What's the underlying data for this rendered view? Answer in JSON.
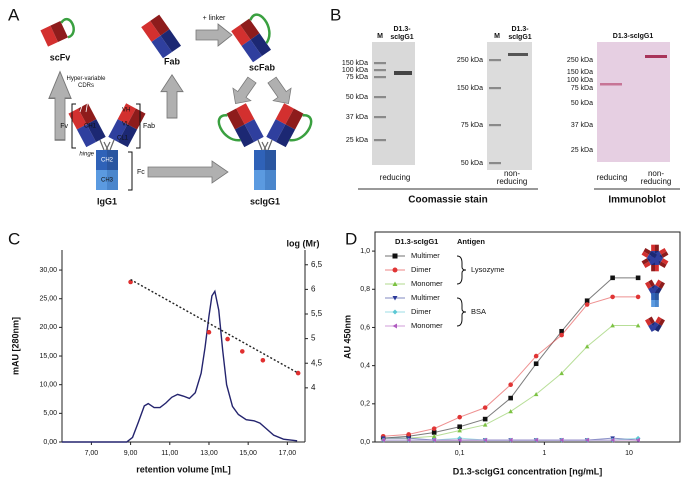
{
  "panel_labels": [
    "A",
    "B",
    "C",
    "D"
  ],
  "panel_a": {
    "scfv": "scFv",
    "fab": "Fab",
    "scfab": "scFab",
    "igg1": "IgG1",
    "scigg1": "scIgG1",
    "linker": "+ linker",
    "cdrs": "Hyper-variable CDRs",
    "vh": "VH",
    "vl": "VL",
    "ch1": "CH1",
    "cl1": "CL1",
    "fv": "Fv",
    "fab_bracket": "Fab",
    "hinge": "hinge",
    "ch2": "CH2",
    "ch3": "CH3",
    "fc": "Fc"
  },
  "panel_b": {
    "coomassie": {
      "gels": [
        {
          "lanes": [
            "M",
            "D1.3-scIgG1"
          ],
          "markers": [
            "150 kDa",
            "100 kDa",
            "75 kDa",
            "50 kDa",
            "37 kDa",
            "25 kDa"
          ],
          "condition": "reducing"
        },
        {
          "lanes": [
            "M",
            "D1.3-scIgG1"
          ],
          "markers": [
            "250 kDa",
            "150 kDa",
            "75 kDa",
            "50 kDa"
          ],
          "condition": "non-reducing"
        }
      ],
      "caption": "Coomassie stain"
    },
    "immunoblot": {
      "lane": "D1.3-scIgG1",
      "markers": [
        "250 kDa",
        "150 kDa",
        "100 kDa",
        "75 kDa",
        "50 kDa",
        "37 kDa",
        "25 kDa"
      ],
      "conditions": [
        "reducing",
        "non-reducing"
      ],
      "caption": "Immunoblot"
    }
  },
  "chart_data": [
    {
      "type": "line",
      "ylabel": "mAU [280nm]",
      "xlabel": "retention volume [mL]",
      "y2label": "log (Mr)",
      "xlim": [
        5.5,
        17.9
      ],
      "ylim": [
        0,
        33.5
      ],
      "y2lim": [
        2.9,
        6.8
      ],
      "frame": false,
      "xticks": [
        {
          "value": 7,
          "label": "7,00"
        },
        {
          "value": 9,
          "label": "9,00"
        },
        {
          "value": 11,
          "label": "11,00"
        },
        {
          "value": 13,
          "label": "13,00"
        },
        {
          "value": 15,
          "label": "15,00"
        },
        {
          "value": 17,
          "label": "17,00"
        }
      ],
      "yticks": [
        {
          "value": 0,
          "label": "0,00"
        },
        {
          "value": 5,
          "label": "5,00"
        },
        {
          "value": 10,
          "label": "10,00"
        },
        {
          "value": 15,
          "label": "15,00"
        },
        {
          "value": 20,
          "label": "20,00"
        },
        {
          "value": 25,
          "label": "25,00"
        },
        {
          "value": 30,
          "label": "30,00"
        }
      ],
      "y2ticks": [
        4,
        {
          "value": 4.5,
          "label": "4,5"
        },
        5,
        {
          "value": 5.5,
          "label": "5,5"
        },
        6,
        {
          "value": 6.5,
          "label": "6,5"
        }
      ],
      "series": [
        {
          "color": "#24246e",
          "style": "line",
          "x": [
            5.5,
            8.8,
            9.1,
            9.4,
            9.7,
            9.9,
            10.2,
            10.5,
            10.8,
            11.1,
            11.4,
            11.7,
            12.0,
            12.3,
            12.6,
            12.8,
            13.0,
            13.15,
            13.3,
            13.5,
            13.7,
            13.9,
            14.2,
            14.5,
            14.9,
            15.3,
            15.6,
            15.9,
            16.3,
            16.8,
            17.5
          ],
          "values": [
            0,
            0,
            0.8,
            3.5,
            6.3,
            6.7,
            6.0,
            6.0,
            6.8,
            7.8,
            8.3,
            8.0,
            7.6,
            8.6,
            12,
            16.5,
            22,
            25.5,
            26.3,
            23,
            16,
            10,
            6.2,
            4.8,
            3.9,
            3.7,
            3.3,
            2.4,
            1.2,
            0.5,
            0.2
          ]
        },
        {
          "color": "#e03030",
          "style": "markers",
          "marker": "circle",
          "axis": "y2",
          "x": [
            9.0,
            13.0,
            13.95,
            14.7,
            15.75,
            17.55
          ],
          "values": [
            6.15,
            5.13,
            4.99,
            4.74,
            4.56,
            4.3
          ]
        },
        {
          "color": "#222222",
          "style": "dashed",
          "axis": "y2",
          "x": [
            9.0,
            17.55
          ],
          "values": [
            6.2,
            4.3
          ]
        }
      ]
    },
    {
      "type": "line",
      "log_x": true,
      "frame": true,
      "ylabel": "AU 450nm",
      "xlabel": "D1.3-scIgG1 concentration [ng/mL]",
      "xlim": [
        0.01,
        40
      ],
      "ylim": [
        0,
        1.1
      ],
      "xticks": [
        {
          "value": 0.1,
          "label": "0,1"
        },
        1,
        10
      ],
      "yticks": [
        {
          "value": 0,
          "label": "0,0"
        },
        {
          "value": 0.2,
          "label": "0,2"
        },
        {
          "value": 0.4,
          "label": "0,4"
        },
        {
          "value": 0.6,
          "label": "0,6"
        },
        {
          "value": 0.8,
          "label": "0,8"
        },
        {
          "value": 1.0,
          "label": "1,0"
        }
      ],
      "legend": "upper left",
      "legend_header": [
        "D1.3-scIgG1",
        "Antigen"
      ],
      "legend_groups": [
        "Lysozyme",
        "BSA"
      ],
      "x": [
        0.0125,
        0.025,
        0.05,
        0.1,
        0.2,
        0.4,
        0.8,
        1.6,
        3.2,
        6.4,
        12.8
      ],
      "series": [
        {
          "name": "Multimer",
          "color": "#111111",
          "marker": "square",
          "style": "line",
          "values": [
            0.02,
            0.03,
            0.05,
            0.08,
            0.12,
            0.23,
            0.41,
            0.58,
            0.74,
            0.86,
            0.86
          ]
        },
        {
          "name": "Dimer",
          "color": "#e03535",
          "marker": "circle",
          "style": "line",
          "values": [
            0.03,
            0.04,
            0.07,
            0.13,
            0.18,
            0.3,
            0.45,
            0.56,
            0.72,
            0.76,
            0.76
          ]
        },
        {
          "name": "Monomer",
          "color": "#7cc242",
          "marker": "triangle-up",
          "style": "line",
          "values": [
            0.02,
            0.02,
            0.03,
            0.06,
            0.09,
            0.16,
            0.25,
            0.36,
            0.5,
            0.61,
            0.61
          ]
        },
        {
          "name": "Multimer",
          "color": "#2c3a9a",
          "marker": "triangle-down",
          "style": "line",
          "values": [
            0.02,
            0.02,
            0.01,
            0.01,
            0.01,
            0.01,
            0.01,
            0.01,
            0.01,
            0.02,
            0.01
          ]
        },
        {
          "name": "Dimer",
          "color": "#5cc8d4",
          "marker": "diamond",
          "style": "line",
          "values": [
            0.01,
            0.01,
            0.01,
            0.02,
            0.01,
            0.01,
            0.01,
            0.01,
            0.01,
            0.01,
            0.02
          ]
        },
        {
          "name": "Monomer",
          "color": "#b05cc0",
          "marker": "triangle-left",
          "style": "line",
          "values": [
            0.01,
            0.01,
            0.01,
            0.01,
            0.01,
            0.01,
            0.01,
            0.01,
            0.01,
            0.01,
            0.01
          ]
        }
      ]
    }
  ]
}
